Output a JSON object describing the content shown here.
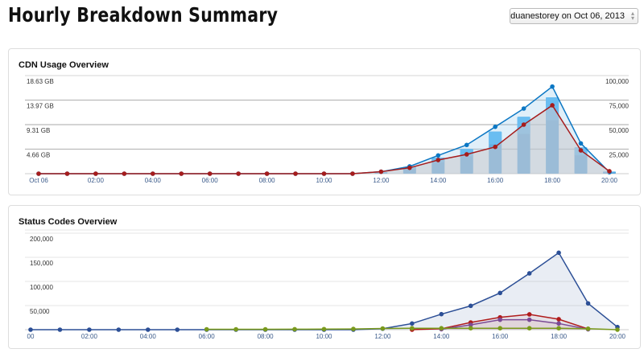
{
  "page_title": "Hourly Breakdown Summary",
  "selector": {
    "value": "duanestorey on Oct 06, 2013"
  },
  "chart_data": [
    {
      "type": "bar+line",
      "title": "CDN Usage Overview",
      "x_labels": [
        "Oct 06",
        "02:00",
        "04:00",
        "06:00",
        "08:00",
        "10:00",
        "12:00",
        "14:00",
        "16:00",
        "18:00",
        "20:00"
      ],
      "left_ticks": [
        "4.66 GB",
        "9.31 GB",
        "13.97 GB",
        "18.63 GB"
      ],
      "right_ticks": [
        "25,000",
        "50,000",
        "75,000",
        "100,000"
      ],
      "left_max": 18.63,
      "right_max": 100000,
      "bars_gb": [
        0,
        0,
        0,
        0,
        0,
        0,
        0,
        0,
        0,
        0,
        0,
        0,
        0.3,
        1.27,
        3.05,
        4.7,
        8.0,
        10.8,
        14.5,
        5.0,
        0.4
      ],
      "series": [
        {
          "name": "blue",
          "color": "#0b77c4",
          "axis": "right",
          "values": [
            0,
            0,
            0,
            0,
            0,
            0,
            0,
            0,
            0,
            0,
            0,
            0,
            2000,
            7400,
            18600,
            29300,
            47800,
            66400,
            88800,
            30900,
            1500
          ]
        },
        {
          "name": "red",
          "color": "#a61c1c",
          "axis": "right",
          "values": [
            0,
            0,
            0,
            0,
            0,
            0,
            0,
            0,
            0,
            0,
            0,
            0,
            2000,
            6000,
            13900,
            19700,
            27300,
            50000,
            69700,
            23800,
            2500
          ]
        }
      ]
    },
    {
      "type": "line",
      "title": "Status Codes Overview",
      "x_labels": [
        "00",
        "02:00",
        "04:00",
        "06:00",
        "08:00",
        "10:00",
        "12:00",
        "14:00",
        "16:00",
        "18:00",
        "20:00"
      ],
      "left_ticks": [
        "50,000",
        "100,000",
        "150,000",
        "200,000"
      ],
      "ymax": 200000,
      "series": [
        {
          "name": "blue",
          "color": "#2c4f96",
          "start": 0,
          "values": [
            0,
            0,
            0,
            0,
            0,
            0,
            0,
            0,
            0,
            0,
            0,
            0,
            2000,
            12800,
            32200,
            49400,
            76100,
            116700,
            159500,
            54500,
            5500
          ]
        },
        {
          "name": "red",
          "color": "#b01c1c",
          "start": 13,
          "values": [
            0,
            2000,
            15000,
            25600,
            31700,
            21700,
            1500
          ]
        },
        {
          "name": "purple",
          "color": "#7b4a96",
          "start": 14,
          "values": [
            1000,
            10000,
            20600,
            20600,
            12800,
            800
          ]
        },
        {
          "name": "green",
          "color": "#7a9a1c",
          "start": 6,
          "values": [
            800,
            800,
            800,
            1000,
            1200,
            1500,
            2500,
            3000,
            3000,
            3000,
            3000,
            3000,
            3000,
            2000,
            0
          ]
        }
      ]
    }
  ]
}
